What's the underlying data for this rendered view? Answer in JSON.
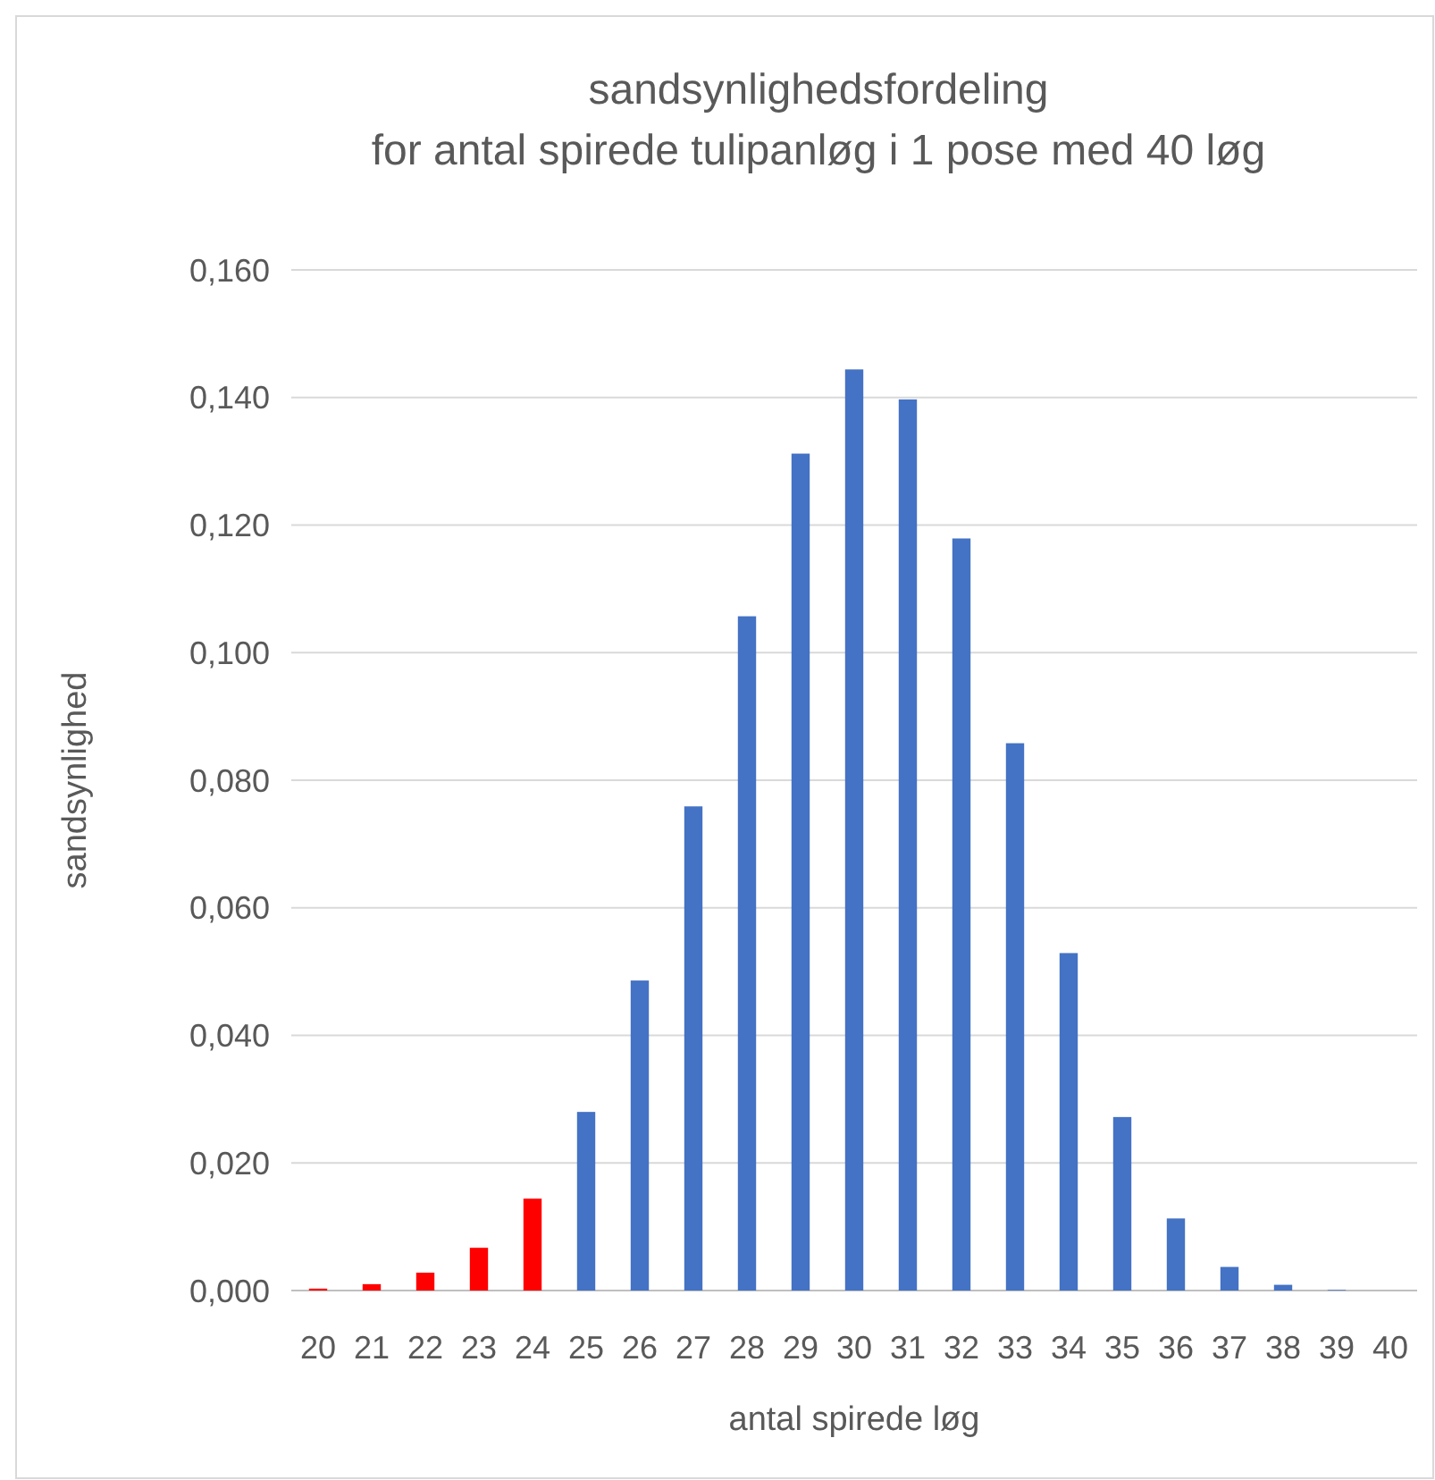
{
  "chart_data": {
    "type": "bar",
    "title": "sandsynlighedsfordeling",
    "subtitle": "for antal spirede tulipanløg i 1 pose med 40 løg",
    "xlabel": "antal spirede løg",
    "ylabel": "sandsynlighed",
    "categories": [
      "20",
      "21",
      "22",
      "23",
      "24",
      "25",
      "26",
      "27",
      "28",
      "29",
      "30",
      "31",
      "32",
      "33",
      "34",
      "35",
      "36",
      "37",
      "38",
      "39",
      "40"
    ],
    "values": [
      0.0003,
      0.001,
      0.0028,
      0.0067,
      0.0144,
      0.028,
      0.0486,
      0.0759,
      0.1057,
      0.1312,
      0.1444,
      0.1397,
      0.1179,
      0.0858,
      0.0529,
      0.0272,
      0.0113,
      0.0037,
      0.0009,
      0.0001,
      0.0
    ],
    "colors": [
      "#ff0000",
      "#ff0000",
      "#ff0000",
      "#ff0000",
      "#ff0000",
      "#4472c4",
      "#4472c4",
      "#4472c4",
      "#4472c4",
      "#4472c4",
      "#4472c4",
      "#4472c4",
      "#4472c4",
      "#4472c4",
      "#4472c4",
      "#4472c4",
      "#4472c4",
      "#4472c4",
      "#4472c4",
      "#4472c4",
      "#4472c4"
    ],
    "ylim": [
      0,
      0.16
    ],
    "yticks": [
      {
        "value": 0,
        "label": "0,000"
      },
      {
        "value": 0.02,
        "label": "0,020"
      },
      {
        "value": 0.04,
        "label": "0,040"
      },
      {
        "value": 0.06,
        "label": "0,060"
      },
      {
        "value": 0.08,
        "label": "0,080"
      },
      {
        "value": 0.1,
        "label": "0,100"
      },
      {
        "value": 0.12,
        "label": "0,120"
      },
      {
        "value": 0.14,
        "label": "0,140"
      },
      {
        "value": 0.16,
        "label": "0,160"
      }
    ],
    "grid": "y"
  }
}
